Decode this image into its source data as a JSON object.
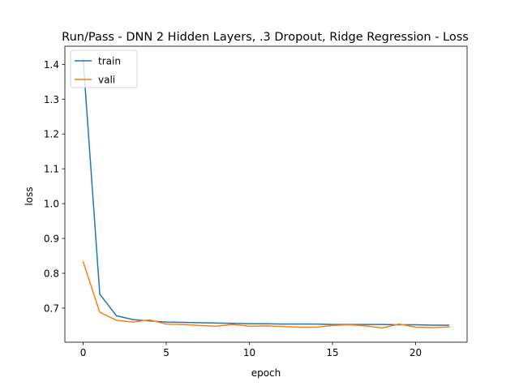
{
  "chart_data": {
    "type": "line",
    "title": "Run/Pass - DNN 2 Hidden Layers, .3 Dropout, Ridge Regression - Loss",
    "xlabel": "epoch",
    "ylabel": "loss",
    "xlim": [
      -1.1,
      23.1
    ],
    "ylim": [
      0.602,
      1.452
    ],
    "xticks": [
      0,
      5,
      10,
      15,
      20
    ],
    "yticks": [
      0.7,
      0.8,
      0.9,
      1.0,
      1.1,
      1.2,
      1.3,
      1.4
    ],
    "legend_position": "upper-left",
    "grid": false,
    "x": [
      0,
      1,
      2,
      3,
      4,
      5,
      6,
      7,
      8,
      9,
      10,
      11,
      12,
      13,
      14,
      15,
      16,
      17,
      18,
      19,
      20,
      21,
      22
    ],
    "series": [
      {
        "name": "train",
        "color": "#1f77b4",
        "values": [
          1.415,
          0.74,
          0.678,
          0.667,
          0.663,
          0.66,
          0.659,
          0.658,
          0.657,
          0.656,
          0.655,
          0.655,
          0.654,
          0.654,
          0.654,
          0.653,
          0.653,
          0.653,
          0.653,
          0.652,
          0.652,
          0.651,
          0.651
        ]
      },
      {
        "name": "vali",
        "color": "#ff7f0e",
        "values": [
          0.833,
          0.688,
          0.665,
          0.66,
          0.666,
          0.654,
          0.653,
          0.65,
          0.648,
          0.653,
          0.648,
          0.649,
          0.647,
          0.645,
          0.645,
          0.65,
          0.652,
          0.649,
          0.643,
          0.654,
          0.645,
          0.644,
          0.646
        ]
      }
    ]
  }
}
